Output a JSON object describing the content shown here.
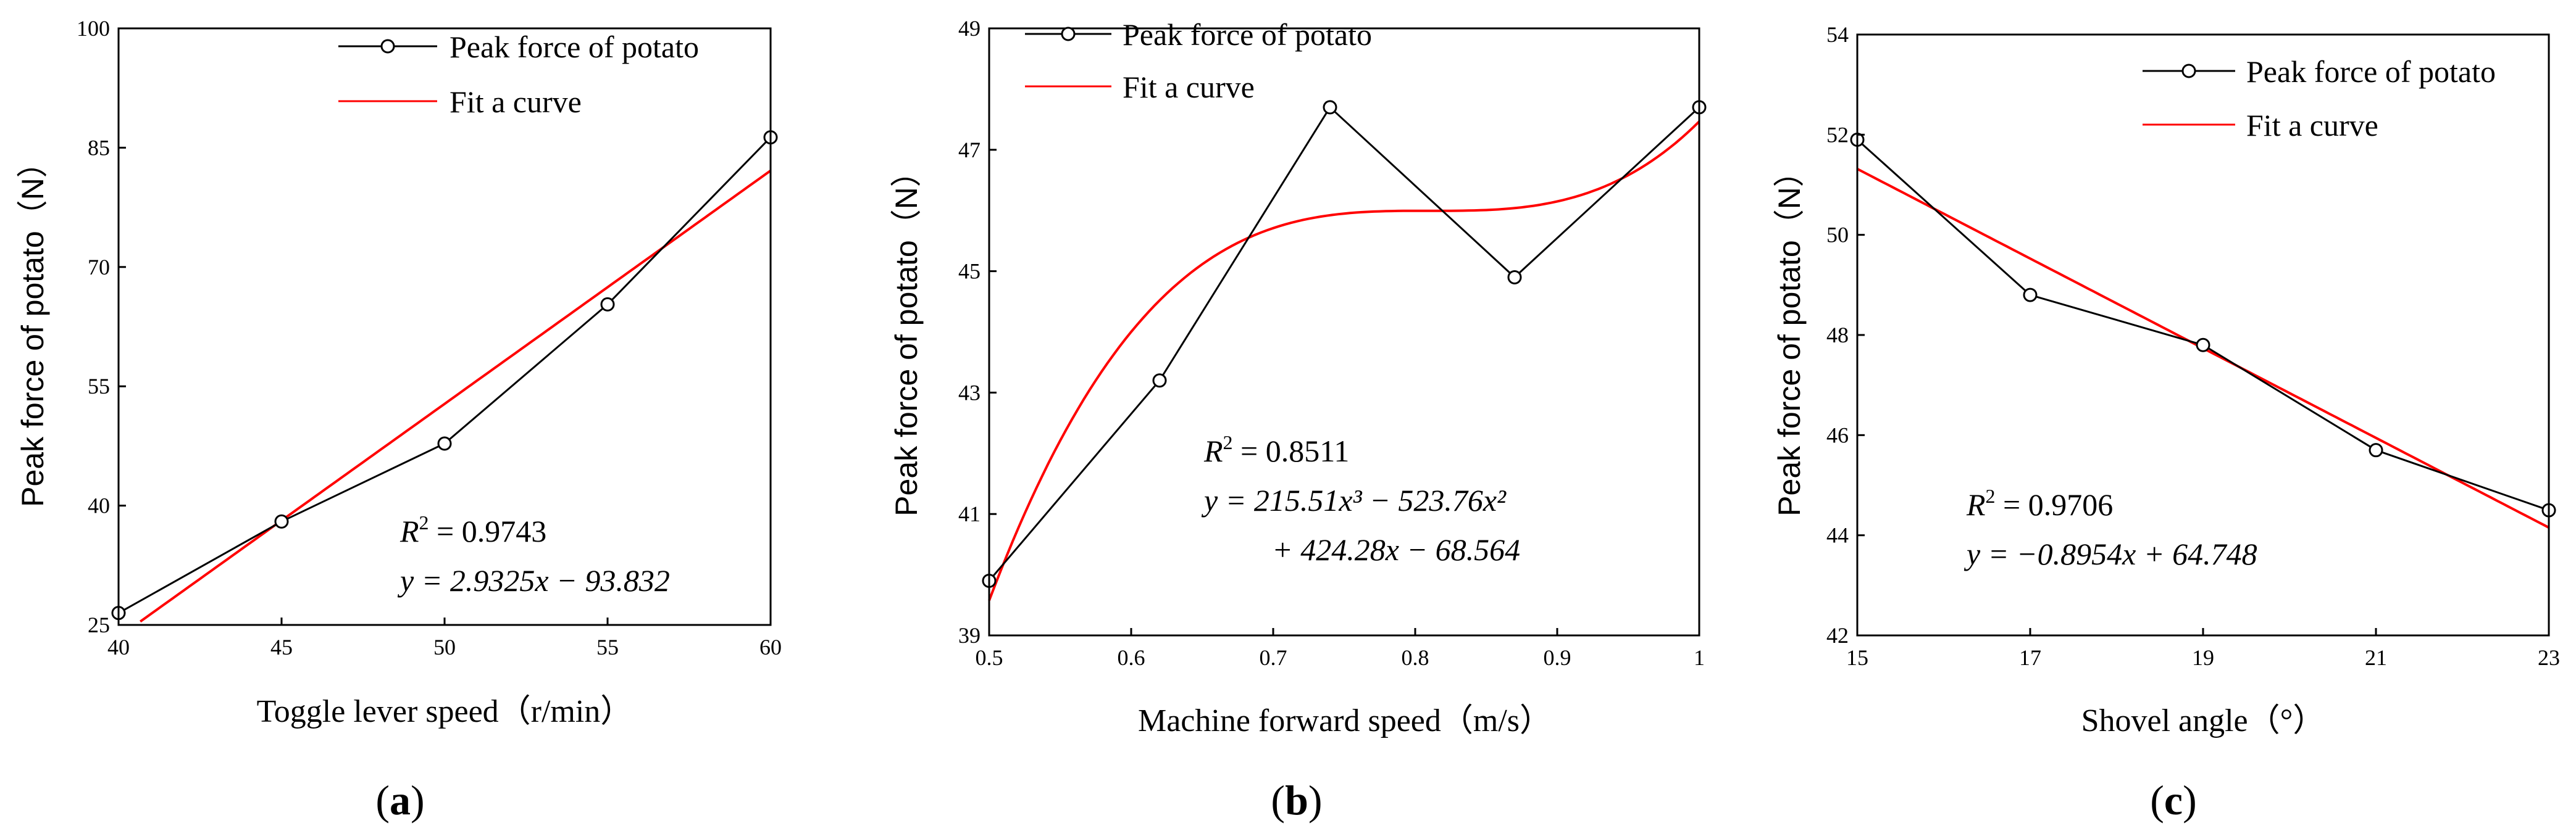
{
  "figure": {
    "panels": [
      "a",
      "b",
      "c"
    ],
    "label_open": "(",
    "label_close": ")"
  },
  "chart_data": [
    {
      "type": "line",
      "panel": "a",
      "xlabel": "Toggle lever speed（r/min）",
      "ylabel": "Peak force of potato（N）",
      "xlim": [
        40,
        60
      ],
      "ylim": [
        25,
        100
      ],
      "xticks": [
        40,
        45,
        50,
        55,
        60
      ],
      "yticks": [
        25,
        40,
        55,
        70,
        85,
        100
      ],
      "series": [
        {
          "name": "Peak force of potato",
          "kind": "markers-line",
          "color": "#000000",
          "x": [
            40,
            45,
            50,
            55,
            60
          ],
          "y": [
            26.5,
            38.0,
            47.8,
            65.3,
            86.3
          ]
        },
        {
          "name": "Fit a curve",
          "kind": "linear-fit",
          "color": "#ff0000",
          "coefficients": [
            2.9325,
            -93.832
          ],
          "x_range": [
            40,
            60
          ]
        }
      ],
      "annotations": {
        "r2_label": "R",
        "r2_sup": "2",
        "r2_value": " = 0.9743",
        "eq_line1": "y = 2.9325x − 93.832"
      }
    },
    {
      "type": "line",
      "panel": "b",
      "xlabel": "Machine forward speed（m/s）",
      "ylabel": "Peak force of potato（N）",
      "xlim": [
        0.5,
        1.0
      ],
      "ylim": [
        39,
        49
      ],
      "xticks": [
        0.5,
        0.6,
        0.7,
        0.8,
        0.9,
        1.0
      ],
      "xtick_labels": [
        "0.5",
        "0.6",
        "0.7",
        "0.8",
        "0.9",
        "1"
      ],
      "yticks": [
        39,
        41,
        43,
        45,
        47,
        49
      ],
      "series": [
        {
          "name": "Peak force of potato",
          "kind": "markers-line",
          "color": "#000000",
          "x": [
            0.5,
            0.62,
            0.74,
            0.87,
            1.0
          ],
          "y": [
            39.9,
            43.2,
            47.7,
            44.9,
            47.7
          ]
        },
        {
          "name": "Fit a curve",
          "kind": "cubic-fit",
          "color": "#ff0000",
          "coefficients": [
            215.51,
            -523.76,
            424.28,
            -68.564
          ],
          "x_range": [
            0.5,
            1.0
          ]
        }
      ],
      "annotations": {
        "r2_label": "R",
        "r2_sup": "2",
        "r2_value": " = 0.8511",
        "eq_line1": "y = 215.51x³ − 523.76x²",
        "eq_line2": "+ 424.28x − 68.564"
      }
    },
    {
      "type": "line",
      "panel": "c",
      "xlabel": "Shovel angle（°）",
      "ylabel": "Peak force of potato（N）",
      "xlim": [
        15,
        23
      ],
      "ylim": [
        42,
        54
      ],
      "xticks": [
        15,
        17,
        19,
        21,
        23
      ],
      "yticks": [
        42,
        44,
        46,
        48,
        50,
        52,
        54
      ],
      "series": [
        {
          "name": "Peak force of potato",
          "kind": "markers-line",
          "color": "#000000",
          "x": [
            15,
            17,
            19,
            21,
            23
          ],
          "y": [
            51.9,
            48.8,
            47.8,
            45.7,
            44.5
          ]
        },
        {
          "name": "Fit a curve",
          "kind": "linear-fit",
          "color": "#ff0000",
          "coefficients": [
            -0.8954,
            64.748
          ],
          "x_range": [
            15,
            23
          ]
        }
      ],
      "annotations": {
        "r2_label": "R",
        "r2_sup": "2",
        "r2_value": " = 0.9706",
        "eq_line1": "y = −0.8954x + 64.748"
      }
    }
  ]
}
